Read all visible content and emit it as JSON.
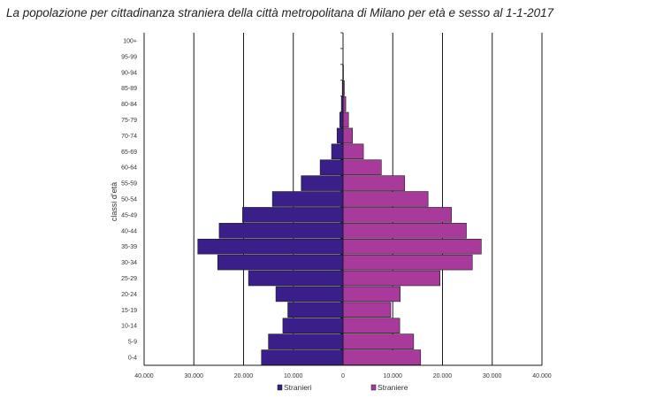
{
  "chart_data": {
    "type": "bar",
    "orientation": "horizontal",
    "title": "La popolazione per cittadinanza straniera della città metropolitana di Milano per età e sesso al 1-1-2017",
    "ylabel": "classi d'età",
    "xlabel": "",
    "xlim": [
      -40000,
      40000
    ],
    "x_ticks": [
      -40000,
      -30000,
      -20000,
      -10000,
      0,
      10000,
      20000,
      30000,
      40000
    ],
    "x_tick_labels": [
      "40.000",
      "30.000",
      "20.000",
      "10.000",
      "0",
      "10.000",
      "20.000",
      "30.000",
      "40.000"
    ],
    "grid": true,
    "legend_position": "bottom",
    "categories": [
      "0-4",
      "5-9",
      "10-14",
      "15-19",
      "20-24",
      "25-29",
      "30-34",
      "35-39",
      "40-44",
      "45-49",
      "50-54",
      "55-59",
      "60-64",
      "65-69",
      "70-74",
      "75-79",
      "80-84",
      "85-89",
      "90-94",
      "95-99",
      "100+"
    ],
    "series": [
      {
        "name": "Stranieri",
        "color": "#3a1f8a",
        "side": "left",
        "values": [
          16400,
          15000,
          12100,
          11100,
          13500,
          19000,
          25200,
          29200,
          24900,
          20200,
          14200,
          8400,
          4600,
          2300,
          1200,
          650,
          330,
          150,
          60,
          20,
          5
        ]
      },
      {
        "name": "Straniere",
        "color": "#a83a9c",
        "side": "right",
        "values": [
          15600,
          14200,
          11400,
          9600,
          11500,
          19500,
          26000,
          27800,
          24800,
          21800,
          17100,
          12400,
          7700,
          4100,
          1900,
          1100,
          550,
          260,
          90,
          30,
          8
        ]
      }
    ]
  }
}
